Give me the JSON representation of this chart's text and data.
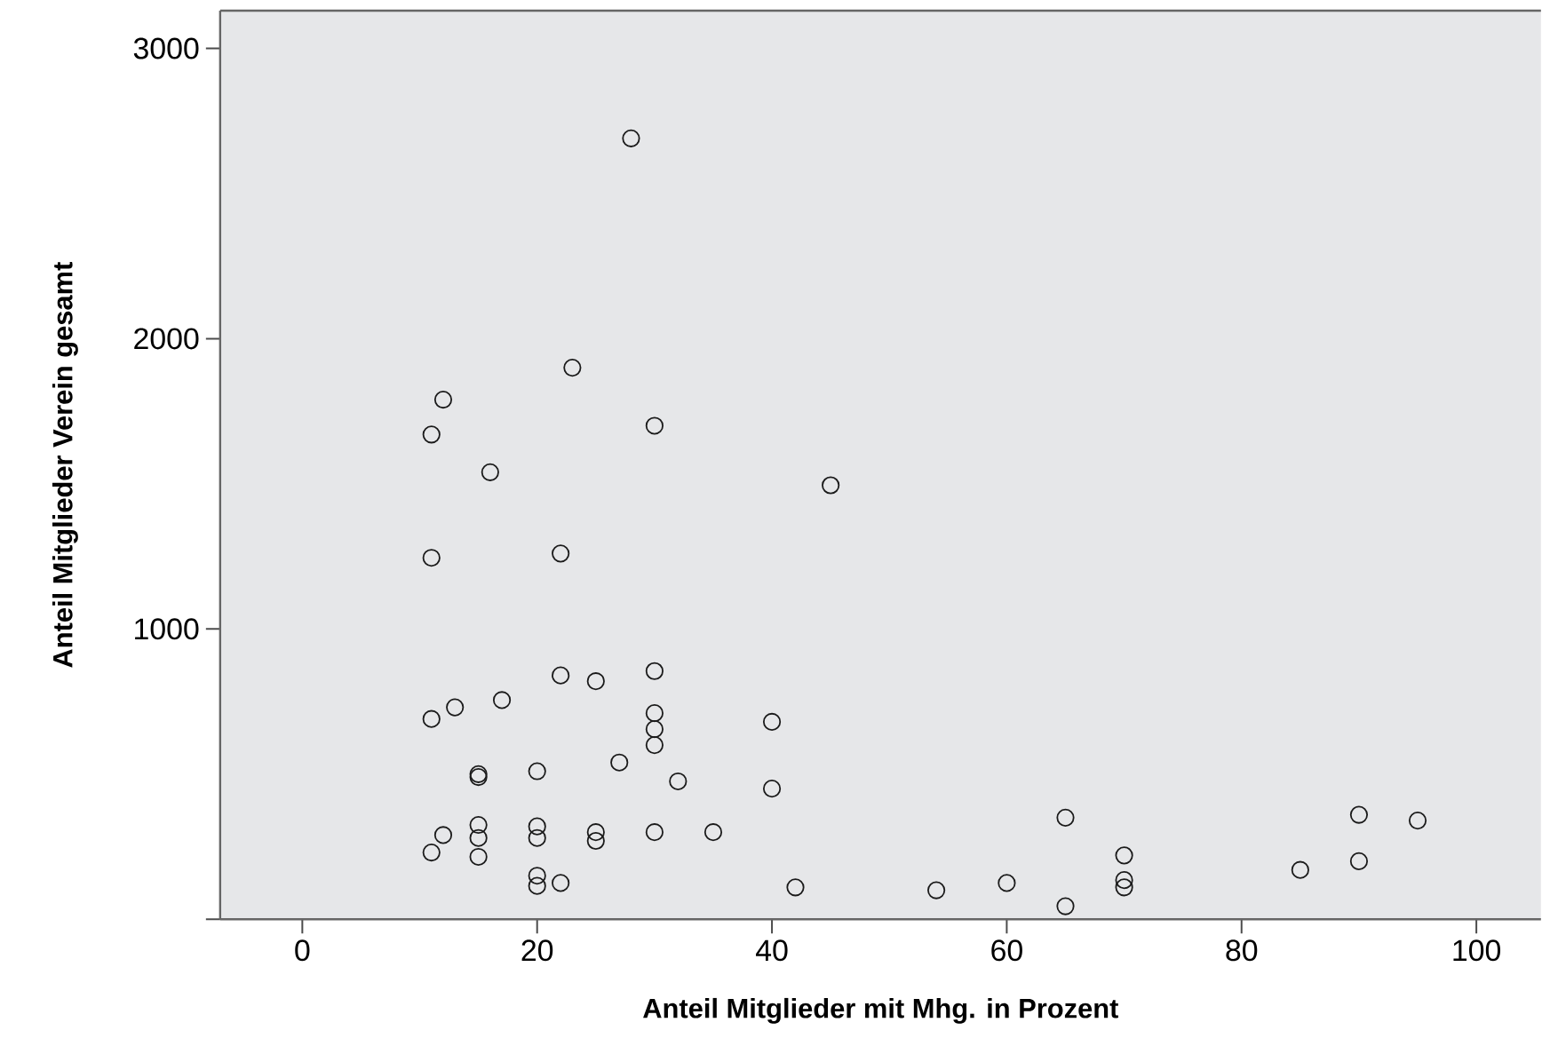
{
  "chart_data": {
    "type": "scatter",
    "xlabel": "Anteil Mitglieder mit Mhg. in Prozent",
    "ylabel": "Anteil Mitglieder Verein gesamt",
    "x": [
      28,
      23,
      12,
      11,
      30,
      16,
      11,
      22,
      22,
      25,
      30,
      11,
      13,
      17,
      30,
      30,
      30,
      27,
      15,
      15,
      20,
      32,
      15,
      15,
      15,
      12,
      11,
      20,
      20,
      25,
      25,
      30,
      35,
      20,
      20,
      22,
      45,
      40,
      40,
      42,
      54,
      60,
      65,
      65,
      70,
      70,
      70,
      85,
      90,
      90,
      95
    ],
    "values": [
      2690,
      1900,
      1790,
      1670,
      1700,
      1540,
      1245,
      1260,
      840,
      820,
      855,
      690,
      730,
      755,
      710,
      655,
      600,
      540,
      500,
      490,
      510,
      475,
      325,
      280,
      215,
      290,
      230,
      320,
      280,
      300,
      270,
      300,
      300,
      150,
      115,
      125,
      1495,
      680,
      450,
      110,
      100,
      125,
      45,
      350,
      220,
      135,
      110,
      170,
      360,
      200,
      340
    ],
    "color": "#1a1a1a",
    "marker": "circle",
    "grid": false,
    "xlim": [
      -7,
      105.5
    ],
    "ylim": [
      0,
      3130
    ],
    "xticks": [
      0,
      20,
      40,
      60,
      80,
      100
    ],
    "yticks": [
      {
        "value": 0,
        "label": null
      },
      1000,
      2000,
      3000
    ]
  }
}
